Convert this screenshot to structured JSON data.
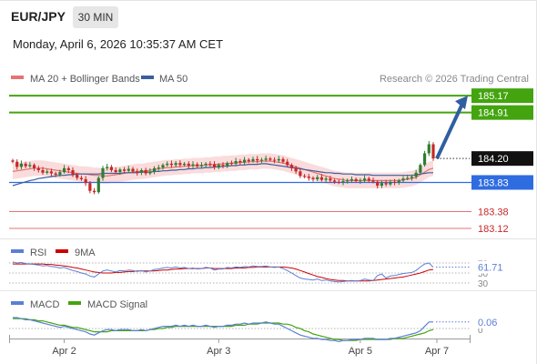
{
  "header": {
    "symbol": "EUR/JPY",
    "timeframe": "30 MIN",
    "datetime": "Monday, April 6, 2026 10:35:37 AM CET"
  },
  "colors": {
    "up": "#2e7d32",
    "down": "#c62828",
    "ma20": "#e57373",
    "ma50": "#3a5f9c",
    "band": "#f8d0d0",
    "green_level": "#43a40f",
    "blue_level": "#2f6ce0",
    "red_level": "#e57373",
    "arrow": "#2f5fa0",
    "rsi": "#5b7fd6",
    "rsi_ma": "#cc0000",
    "macd": "#5b7fd6",
    "macd_signal": "#43a40f"
  },
  "chart_data": [
    {
      "type": "candlestick",
      "title": "",
      "legend": [
        {
          "name": "MA 20 + Bollinger Bands",
          "color": "#e57373"
        },
        {
          "name": "MA 50",
          "color": "#3a5f9c"
        }
      ],
      "legend_position": "top-left",
      "watermark": "Research © 2026 Trading Central",
      "x_ticks": [
        "Apr 2",
        "Apr 3",
        "Apr 5",
        "Apr 7"
      ],
      "ylim": [
        183.05,
        185.25
      ],
      "current_price": "184.20",
      "levels": [
        {
          "value": 185.17,
          "label": "185.17",
          "style": "resistance"
        },
        {
          "value": 184.91,
          "label": "184.91",
          "style": "resistance"
        },
        {
          "value": 183.83,
          "label": "183.83",
          "style": "pivot"
        },
        {
          "value": 183.38,
          "label": "183.38",
          "style": "support"
        },
        {
          "value": 183.12,
          "label": "183.12",
          "style": "support"
        }
      ],
      "projection": {
        "from": 184.2,
        "to": 185.17
      },
      "close": [
        184.15,
        184.07,
        184.12,
        184.08,
        184.1,
        184.05,
        184.02,
        183.98,
        184.0,
        183.97,
        183.95,
        183.99,
        184.05,
        184.02,
        183.95,
        183.9,
        183.88,
        183.82,
        183.7,
        183.68,
        183.9,
        184.05,
        184.07,
        184.02,
        183.99,
        184.03,
        184.01,
        184.04,
        184.0,
        183.98,
        184.02,
        183.97,
        184.0,
        184.05,
        184.06,
        184.1,
        184.12,
        184.1,
        184.13,
        184.1,
        184.12,
        184.09,
        184.11,
        184.08,
        184.1,
        184.12,
        184.11,
        184.06,
        184.1,
        184.09,
        184.13,
        184.12,
        184.16,
        184.14,
        184.18,
        184.16,
        184.19,
        184.17,
        184.18,
        184.2,
        184.18,
        184.17,
        184.19,
        184.15,
        184.1,
        184.05,
        184.0,
        183.93,
        183.92,
        183.9,
        183.88,
        183.91,
        183.87,
        183.89,
        183.86,
        183.84,
        183.83,
        183.85,
        183.86,
        183.88,
        183.85,
        183.86,
        183.89,
        183.86,
        183.84,
        183.78,
        183.82,
        183.8,
        183.84,
        183.83,
        183.86,
        183.89,
        183.9,
        183.92,
        183.98,
        184.1,
        184.28,
        184.42,
        184.2
      ],
      "ma20": [
        184.0,
        184.01,
        184.02,
        184.03,
        184.04,
        184.05,
        184.05,
        184.05,
        184.04,
        184.03,
        184.02,
        184.01,
        184.0,
        183.99,
        183.98,
        183.97,
        183.96,
        183.96,
        183.95,
        183.94,
        183.94,
        183.93,
        183.93,
        183.94,
        183.95,
        183.96,
        183.97,
        183.98,
        183.99,
        184.0,
        184.0,
        184.01,
        184.02,
        184.03,
        184.04,
        184.05,
        184.06,
        184.06,
        184.07,
        184.07,
        184.08,
        184.08,
        184.09,
        184.09,
        184.09,
        184.1,
        184.1,
        184.11,
        184.11,
        184.12,
        184.12,
        184.13,
        184.13,
        184.14,
        184.14,
        184.15,
        184.15,
        184.15,
        184.16,
        184.16,
        184.16,
        184.15,
        184.14,
        184.13,
        184.11,
        184.09,
        184.07,
        184.05,
        184.03,
        184.01,
        183.99,
        183.97,
        183.95,
        183.93,
        183.91,
        183.89,
        183.88,
        183.87,
        183.86,
        183.86,
        183.86,
        183.86,
        183.86,
        183.86,
        183.86,
        183.86,
        183.86,
        183.86,
        183.86,
        183.86,
        183.86,
        183.87,
        183.88,
        183.89,
        183.91,
        183.95,
        183.99,
        184.03,
        184.05
      ],
      "ma50": [
        183.78,
        183.8,
        183.82,
        183.84,
        183.86,
        183.87,
        183.89,
        183.9,
        183.91,
        183.92,
        183.93,
        183.94,
        183.94,
        183.95,
        183.95,
        183.96,
        183.96,
        183.96,
        183.96,
        183.96,
        183.96,
        183.97,
        183.97,
        183.97,
        183.97,
        183.97,
        183.98,
        183.98,
        183.98,
        183.98,
        183.99,
        183.99,
        183.99,
        184.0,
        184.0,
        184.01,
        184.01,
        184.02,
        184.02,
        184.03,
        184.03,
        184.04,
        184.04,
        184.05,
        184.05,
        184.06,
        184.06,
        184.07,
        184.07,
        184.08,
        184.08,
        184.09,
        184.09,
        184.1,
        184.1,
        184.11,
        184.11,
        184.11,
        184.12,
        184.12,
        184.11,
        184.1,
        184.09,
        184.08,
        184.07,
        184.06,
        184.05,
        184.04,
        184.03,
        184.02,
        184.01,
        184.0,
        183.99,
        183.98,
        183.98,
        183.97,
        183.97,
        183.96,
        183.96,
        183.96,
        183.95,
        183.95,
        183.95,
        183.95,
        183.94,
        183.94,
        183.94,
        183.94,
        183.94,
        183.94,
        183.94,
        183.94,
        183.94,
        183.94,
        183.95,
        183.96,
        183.97,
        183.98,
        183.98
      ],
      "band_width": 0.12
    },
    {
      "type": "line",
      "legend": [
        {
          "name": "RSI",
          "color": "#5b7fd6"
        },
        {
          "name": "9MA",
          "color": "#cc0000"
        }
      ],
      "levels": [
        70,
        50,
        30
      ],
      "level_labels": [
        "70",
        "50",
        "30"
      ],
      "ylim": [
        25,
        75
      ],
      "current_label": "61.71",
      "rsi": [
        72,
        70,
        71,
        69,
        68,
        67,
        66,
        64,
        65,
        63,
        62,
        60,
        61,
        58,
        55,
        53,
        50,
        48,
        44,
        42,
        48,
        54,
        56,
        54,
        52,
        55,
        54,
        56,
        55,
        53,
        55,
        52,
        54,
        57,
        58,
        60,
        61,
        60,
        62,
        60,
        61,
        59,
        60,
        58,
        59,
        61,
        60,
        56,
        58,
        58,
        61,
        60,
        62,
        61,
        63,
        62,
        64,
        63,
        63,
        64,
        62,
        61,
        62,
        59,
        55,
        50,
        45,
        40,
        38,
        37,
        36,
        38,
        35,
        36,
        34,
        33,
        32,
        33,
        34,
        35,
        34,
        35,
        38,
        36,
        35,
        45,
        48,
        40,
        44,
        45,
        47,
        49,
        50,
        51,
        55,
        62,
        68,
        70,
        61.71
      ],
      "rsi_ma": [
        68,
        68,
        68,
        68,
        68,
        68,
        68,
        68,
        67,
        67,
        66,
        65,
        64,
        63,
        61,
        60,
        58,
        56,
        54,
        52,
        51,
        50,
        50,
        50,
        51,
        51,
        52,
        53,
        53,
        54,
        54,
        54,
        54,
        54,
        55,
        56,
        56,
        57,
        58,
        58,
        59,
        59,
        59,
        59,
        59,
        60,
        60,
        59,
        59,
        59,
        59,
        59,
        60,
        60,
        60,
        61,
        61,
        62,
        62,
        62,
        62,
        62,
        62,
        62,
        61,
        60,
        58,
        55,
        52,
        49,
        46,
        43,
        41,
        39,
        37,
        36,
        35,
        35,
        34,
        34,
        34,
        34,
        34,
        34,
        35,
        36,
        37,
        38,
        39,
        40,
        41,
        42,
        44,
        46,
        48,
        50,
        53,
        56,
        57
      ]
    },
    {
      "type": "line",
      "legend": [
        {
          "name": "MACD",
          "color": "#5b7fd6"
        },
        {
          "name": "MACD Signal",
          "color": "#43a40f"
        }
      ],
      "zero_label": "0",
      "ylim": [
        -0.2,
        0.14
      ],
      "current_label": "0.06",
      "macd": [
        0.1,
        0.1,
        0.09,
        0.08,
        0.08,
        0.07,
        0.06,
        0.05,
        0.04,
        0.03,
        0.02,
        0.01,
        0.02,
        0.01,
        0.0,
        -0.01,
        -0.02,
        -0.03,
        -0.05,
        -0.06,
        -0.04,
        -0.02,
        -0.01,
        -0.01,
        -0.02,
        -0.01,
        -0.01,
        -0.01,
        -0.02,
        -0.02,
        -0.01,
        -0.02,
        -0.01,
        0.0,
        0.01,
        0.02,
        0.02,
        0.02,
        0.03,
        0.02,
        0.03,
        0.02,
        0.03,
        0.02,
        0.02,
        0.03,
        0.02,
        0.01,
        0.02,
        0.02,
        0.03,
        0.03,
        0.04,
        0.04,
        0.05,
        0.04,
        0.05,
        0.05,
        0.05,
        0.06,
        0.05,
        0.04,
        0.04,
        0.02,
        0.0,
        -0.02,
        -0.04,
        -0.06,
        -0.07,
        -0.08,
        -0.09,
        -0.09,
        -0.1,
        -0.1,
        -0.11,
        -0.11,
        -0.12,
        -0.11,
        -0.11,
        -0.1,
        -0.1,
        -0.1,
        -0.09,
        -0.09,
        -0.09,
        -0.1,
        -0.1,
        -0.1,
        -0.09,
        -0.09,
        -0.08,
        -0.07,
        -0.06,
        -0.05,
        -0.04,
        -0.02,
        0.02,
        0.06,
        0.06
      ],
      "signal": [
        0.09,
        0.09,
        0.09,
        0.09,
        0.08,
        0.08,
        0.07,
        0.07,
        0.06,
        0.05,
        0.04,
        0.03,
        0.03,
        0.02,
        0.01,
        0.01,
        0.0,
        -0.01,
        -0.02,
        -0.03,
        -0.03,
        -0.03,
        -0.03,
        -0.02,
        -0.02,
        -0.02,
        -0.02,
        -0.02,
        -0.02,
        -0.02,
        -0.02,
        -0.02,
        -0.01,
        -0.01,
        0.0,
        0.0,
        0.01,
        0.01,
        0.02,
        0.02,
        0.02,
        0.02,
        0.02,
        0.02,
        0.02,
        0.02,
        0.02,
        0.02,
        0.02,
        0.02,
        0.02,
        0.02,
        0.03,
        0.03,
        0.03,
        0.04,
        0.04,
        0.04,
        0.05,
        0.05,
        0.05,
        0.05,
        0.05,
        0.04,
        0.04,
        0.03,
        0.01,
        0.0,
        -0.02,
        -0.03,
        -0.05,
        -0.06,
        -0.07,
        -0.08,
        -0.09,
        -0.1,
        -0.1,
        -0.11,
        -0.11,
        -0.11,
        -0.11,
        -0.1,
        -0.1,
        -0.1,
        -0.1,
        -0.1,
        -0.1,
        -0.1,
        -0.1,
        -0.09,
        -0.09,
        -0.09,
        -0.08,
        -0.07,
        -0.06,
        -0.05,
        -0.04,
        -0.02,
        -0.01
      ]
    }
  ]
}
